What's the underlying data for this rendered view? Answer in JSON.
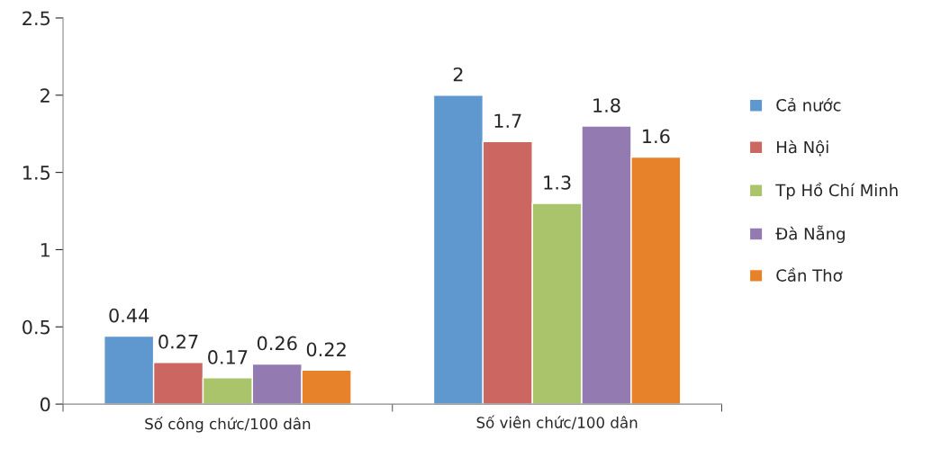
{
  "chart_data": {
    "type": "bar",
    "categories": [
      "Số công chức/100 dân",
      "Số viên chức/100 dân"
    ],
    "series": [
      {
        "name": "Cả nước",
        "color": "#5f97cf",
        "values": [
          0.44,
          2
        ]
      },
      {
        "name": "Hà Nội",
        "color": "#cc6660",
        "values": [
          0.27,
          1.7
        ]
      },
      {
        "name": "Tp Hồ Chí Minh",
        "color": "#a9c46b",
        "values": [
          0.17,
          1.3
        ]
      },
      {
        "name": "Đà Nẵng",
        "color": "#937bb1",
        "values": [
          0.26,
          1.8
        ]
      },
      {
        "name": "Cần Thơ",
        "color": "#e8822a",
        "values": [
          0.22,
          1.6
        ]
      }
    ],
    "ylim": [
      0,
      2.5
    ],
    "yticks": [
      0,
      0.5,
      1,
      1.5,
      2,
      2.5
    ],
    "data_labels": true,
    "grid": false,
    "legend": "right"
  }
}
